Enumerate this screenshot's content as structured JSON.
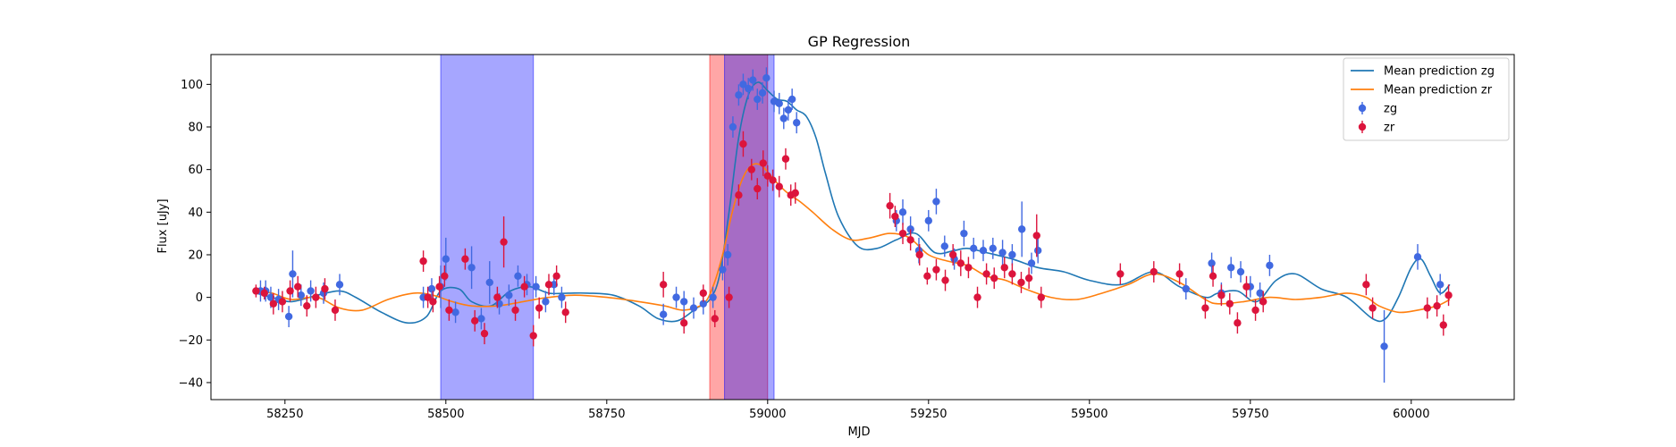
{
  "chart_data": {
    "type": "scatter",
    "title": "GP Regression",
    "xlabel": "MJD",
    "ylabel": "Flux [uJy]",
    "xlim": [
      58135,
      60160
    ],
    "ylim": [
      -48,
      114
    ],
    "x_ticks": [
      58250,
      58500,
      58750,
      59000,
      59250,
      59500,
      59750,
      60000
    ],
    "y_ticks": [
      -40,
      -20,
      0,
      20,
      40,
      60,
      80,
      100
    ],
    "legend_position": "top-right",
    "legend": [
      {
        "label": "Mean prediction zg",
        "kind": "line",
        "color": "#1f77b4"
      },
      {
        "label": "Mean prediction zr",
        "kind": "line",
        "color": "#ff7f0e"
      },
      {
        "label": "zg",
        "kind": "errorbar",
        "color": "#4169e1"
      },
      {
        "label": "zr",
        "kind": "errorbar",
        "color": "#dc143c"
      }
    ],
    "shaded_regions": [
      {
        "x0": 58492,
        "x1": 58636,
        "color": "#0000ff",
        "opacity": 0.35
      },
      {
        "x0": 58910,
        "x1": 59000,
        "color": "#ff0000",
        "opacity": 0.35
      },
      {
        "x0": 58933,
        "x1": 59010,
        "color": "#0000ff",
        "opacity": 0.35
      }
    ],
    "lines": [
      {
        "name": "Mean prediction zg",
        "color": "#1f77b4",
        "x": [
          58205,
          58230,
          58260,
          58300,
          58335,
          58360,
          58400,
          58440,
          58470,
          58492,
          58520,
          58540,
          58570,
          58600,
          58630,
          58660,
          58690,
          58720,
          58760,
          58800,
          58830,
          58860,
          58890,
          58910,
          58925,
          58940,
          58955,
          58970,
          58985,
          59000,
          59015,
          59030,
          59045,
          59060,
          59075,
          59090,
          59110,
          59140,
          59170,
          59200,
          59230,
          59260,
          59290,
          59310,
          59340,
          59380,
          59420,
          59460,
          59500,
          59550,
          59600,
          59640,
          59680,
          59700,
          59730,
          59760,
          59790,
          59820,
          59860,
          59900,
          59940,
          59960,
          59980,
          60000,
          60015,
          60030,
          60045,
          60060
        ],
        "y": [
          2,
          0,
          -2,
          1,
          3,
          0,
          -7,
          -12,
          -9,
          3,
          4,
          -2,
          -4,
          3,
          5,
          2,
          2,
          2,
          1,
          -4,
          -10,
          -11,
          -5,
          -1,
          10,
          40,
          75,
          95,
          101,
          97,
          93,
          92,
          88,
          85,
          75,
          58,
          38,
          24,
          23,
          27,
          30,
          21,
          22,
          23,
          21,
          18,
          14,
          12,
          8,
          6,
          12,
          5,
          0,
          2,
          3,
          -2,
          8,
          11,
          4,
          0,
          -10,
          -10,
          0,
          14,
          18,
          10,
          2,
          6
        ]
      },
      {
        "name": "Mean prediction zr",
        "color": "#ff7f0e",
        "x": [
          58205,
          58230,
          58260,
          58300,
          58335,
          58370,
          58410,
          58450,
          58480,
          58510,
          58540,
          58580,
          58620,
          58660,
          58700,
          58750,
          58800,
          58840,
          58870,
          58900,
          58915,
          58930,
          58945,
          58960,
          58975,
          58990,
          59005,
          59020,
          59035,
          59050,
          59070,
          59100,
          59130,
          59160,
          59190,
          59220,
          59250,
          59280,
          59310,
          59340,
          59370,
          59400,
          59440,
          59480,
          59520,
          59560,
          59600,
          59640,
          59680,
          59700,
          59740,
          59780,
          59820,
          59860,
          59900,
          59930,
          59950,
          59980,
          60010,
          60040,
          60060
        ],
        "y": [
          3,
          2,
          -1,
          0,
          -5,
          -6,
          -1,
          2,
          1,
          -2,
          -4,
          -4,
          -2,
          0,
          1,
          0,
          -2,
          -4,
          -6,
          -3,
          5,
          20,
          40,
          55,
          62,
          62,
          57,
          52,
          48,
          45,
          40,
          32,
          27,
          28,
          30,
          28,
          20,
          17,
          15,
          10,
          8,
          4,
          0,
          -1,
          2,
          6,
          11,
          7,
          -1,
          -3,
          -2,
          0,
          -1,
          0,
          2,
          0,
          -4,
          -7,
          -6,
          -4,
          -1
        ]
      }
    ],
    "series": [
      {
        "name": "zg",
        "color": "#4169e1",
        "x": [
          58212,
          58220,
          58228,
          58240,
          58256,
          58262,
          58275,
          58290,
          58310,
          58335,
          58465,
          58478,
          58492,
          58500,
          58515,
          58540,
          58555,
          58568,
          58583,
          58598,
          58612,
          58626,
          58640,
          58655,
          58668,
          58680,
          58838,
          58858,
          58870,
          58885,
          58900,
          58915,
          58930,
          58938,
          58946,
          58955,
          58962,
          58970,
          58977,
          58984,
          58992,
          58998,
          59010,
          59018,
          59025,
          59032,
          59038,
          59045,
          59200,
          59210,
          59222,
          59235,
          59250,
          59262,
          59275,
          59290,
          59305,
          59320,
          59335,
          59350,
          59365,
          59380,
          59395,
          59410,
          59420,
          59650,
          59690,
          59705,
          59720,
          59735,
          59750,
          59765,
          59780,
          60010,
          60045,
          59958
        ],
        "y": [
          3,
          3,
          0,
          -1,
          -9,
          11,
          1,
          3,
          2,
          6,
          0,
          4,
          5,
          18,
          -7,
          14,
          -10,
          7,
          -3,
          1,
          10,
          6,
          5,
          -2,
          6,
          0,
          -8,
          0,
          -2,
          -5,
          -3,
          0,
          13,
          20,
          80,
          95,
          100,
          98,
          102,
          93,
          96,
          103,
          92,
          91,
          84,
          88,
          93,
          82,
          36,
          40,
          32,
          22,
          36,
          45,
          24,
          18,
          30,
          23,
          22,
          23,
          21,
          20,
          32,
          16,
          22,
          4,
          16,
          2,
          14,
          12,
          5,
          2,
          15,
          19,
          6,
          -23
        ],
        "err": [
          5,
          5,
          5,
          5,
          5,
          11,
          5,
          5,
          5,
          5,
          5,
          5,
          10,
          10,
          5,
          10,
          5,
          10,
          5,
          5,
          5,
          5,
          5,
          5,
          5,
          5,
          5,
          5,
          5,
          5,
          5,
          5,
          5,
          5,
          5,
          5,
          5,
          5,
          5,
          5,
          5,
          5,
          5,
          5,
          5,
          5,
          5,
          5,
          5,
          6,
          6,
          6,
          5,
          6,
          5,
          5,
          6,
          5,
          5,
          5,
          6,
          5,
          13,
          5,
          6,
          5,
          5,
          5,
          5,
          5,
          5,
          5,
          5,
          6,
          5,
          17
        ]
      },
      {
        "name": "zr",
        "color": "#dc143c",
        "x": [
          58205,
          58218,
          58232,
          58246,
          58258,
          58270,
          58284,
          58298,
          58312,
          58328,
          58465,
          58472,
          58480,
          58490,
          58498,
          58505,
          58530,
          58545,
          58560,
          58580,
          58590,
          58608,
          58622,
          58636,
          58645,
          58660,
          58672,
          58686,
          58838,
          58870,
          58900,
          58918,
          58940,
          58955,
          58962,
          58975,
          58984,
          58993,
          59000,
          59008,
          59018,
          59028,
          59036,
          59043,
          59190,
          59198,
          59210,
          59222,
          59236,
          59248,
          59262,
          59276,
          59288,
          59300,
          59312,
          59326,
          59340,
          59352,
          59368,
          59380,
          59394,
          59406,
          59418,
          59425,
          59548,
          59600,
          59640,
          59680,
          59692,
          59705,
          59718,
          59730,
          59744,
          59758,
          59770,
          59930,
          59940,
          60025,
          60040,
          60050,
          60058
        ],
        "y": [
          3,
          2,
          -3,
          -2,
          3,
          5,
          -4,
          0,
          4,
          -6,
          17,
          0,
          -2,
          5,
          10,
          -6,
          18,
          -11,
          -17,
          0,
          26,
          -6,
          5,
          -18,
          -5,
          6,
          10,
          -7,
          6,
          -12,
          2,
          -10,
          0,
          48,
          72,
          60,
          51,
          63,
          57,
          55,
          52,
          65,
          48,
          49,
          43,
          38,
          30,
          27,
          20,
          10,
          13,
          8,
          20,
          16,
          14,
          0,
          11,
          9,
          14,
          11,
          7,
          9,
          29,
          0,
          11,
          12,
          11,
          -5,
          10,
          1,
          -3,
          -12,
          5,
          -6,
          -2,
          6,
          -5,
          -5,
          -4,
          -13,
          1
        ],
        "err": [
          3,
          3,
          5,
          5,
          5,
          5,
          5,
          5,
          5,
          5,
          5,
          5,
          5,
          5,
          5,
          5,
          5,
          5,
          5,
          5,
          12,
          5,
          5,
          5,
          5,
          5,
          5,
          5,
          6,
          5,
          4,
          4,
          5,
          5,
          6,
          5,
          5,
          6,
          5,
          5,
          5,
          5,
          5,
          5,
          6,
          5,
          5,
          5,
          5,
          4,
          5,
          5,
          5,
          6,
          5,
          5,
          5,
          5,
          5,
          5,
          5,
          5,
          10,
          5,
          5,
          5,
          5,
          5,
          5,
          5,
          5,
          5,
          5,
          5,
          5,
          5,
          5,
          5,
          5,
          5,
          5
        ]
      }
    ]
  }
}
